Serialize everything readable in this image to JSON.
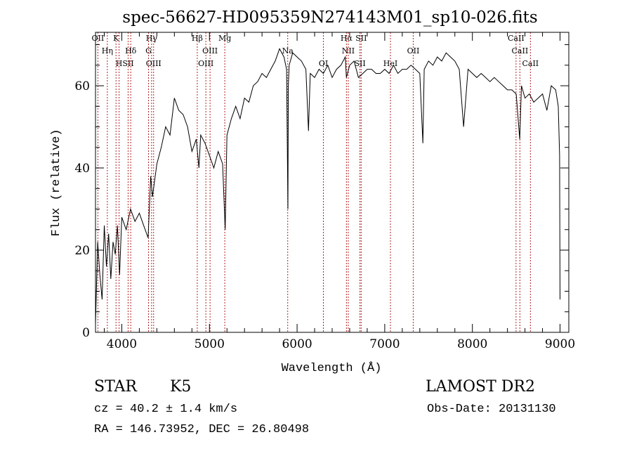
{
  "chart_data": {
    "type": "line",
    "title": "spec-56627-HD095359N274143M01_sp10-026.fits",
    "xlabel": "Wavelength (Å)",
    "ylabel": "Flux (relative)",
    "xlim": [
      3700,
      9100
    ],
    "ylim": [
      0,
      73
    ],
    "xticks": [
      4000,
      5000,
      6000,
      7000,
      8000,
      9000
    ],
    "yticks": [
      0,
      20,
      40,
      60
    ],
    "grid": false,
    "line_color": "#000000",
    "marker_color": "#b22222",
    "series": [
      {
        "x": [
          3700,
          3725,
          3750,
          3775,
          3800,
          3825,
          3850,
          3875,
          3900,
          3925,
          3950,
          3975,
          4000,
          4050,
          4100,
          4150,
          4200,
          4250,
          4300,
          4330,
          4350,
          4400,
          4450,
          4500,
          4550,
          4600,
          4650,
          4700,
          4750,
          4800,
          4850,
          4880,
          4900,
          4950,
          5000,
          5050,
          5100,
          5150,
          5180,
          5200,
          5250,
          5300,
          5350,
          5400,
          5450,
          5500,
          5550,
          5600,
          5650,
          5700,
          5750,
          5800,
          5850,
          5880,
          5895,
          5900,
          5910,
          5950,
          6000,
          6050,
          6100,
          6130,
          6150,
          6200,
          6250,
          6300,
          6350,
          6400,
          6450,
          6500,
          6550,
          6563,
          6600,
          6650,
          6700,
          6750,
          6800,
          6850,
          6900,
          6950,
          7000,
          7050,
          7100,
          7150,
          7200,
          7250,
          7300,
          7350,
          7400,
          7435,
          7450,
          7500,
          7550,
          7600,
          7650,
          7700,
          7750,
          7800,
          7850,
          7900,
          7950,
          8000,
          8050,
          8100,
          8150,
          8200,
          8250,
          8300,
          8350,
          8400,
          8450,
          8500,
          8540,
          8560,
          8600,
          8650,
          8700,
          8750,
          8800,
          8850,
          8900,
          8950,
          8980,
          8995,
          9000
        ],
        "y": [
          2,
          22,
          14,
          8,
          26,
          16,
          24,
          13,
          22,
          19,
          26,
          14,
          28,
          25,
          30,
          27,
          29,
          26,
          23,
          38,
          33,
          41,
          45,
          50,
          48,
          57,
          54,
          53,
          50,
          44,
          47,
          40,
          48,
          46,
          43,
          40,
          44,
          41,
          25,
          48,
          52,
          55,
          52,
          57,
          56,
          60,
          61,
          63,
          62,
          64,
          66,
          69,
          67,
          64,
          30,
          60,
          65,
          68,
          67,
          66,
          64,
          49,
          63,
          62,
          64,
          63,
          65,
          62,
          64,
          65,
          67,
          62,
          65,
          66,
          62,
          63,
          64,
          64,
          63,
          63,
          64,
          63,
          65,
          63,
          64,
          64,
          65,
          64,
          63,
          46,
          64,
          66,
          65,
          67,
          66,
          68,
          67,
          66,
          64,
          50,
          64,
          63,
          62,
          63,
          62,
          61,
          62,
          61,
          60,
          59,
          59,
          58,
          47,
          60,
          57,
          58,
          56,
          57,
          58,
          54,
          60,
          59,
          55,
          43,
          8
        ]
      }
    ],
    "line_markers": [
      {
        "label": "OII",
        "wavelength": 3727
      },
      {
        "label": "Hη",
        "wavelength": 3835
      },
      {
        "label": "H",
        "wavelength": 3969
      },
      {
        "label": "K",
        "wavelength": 3934
      },
      {
        "label": "Hδ",
        "wavelength": 4102
      },
      {
        "label": "SII",
        "wavelength": 4072
      },
      {
        "label": "Hγ",
        "wavelength": 4340
      },
      {
        "label": "G",
        "wavelength": 4305
      },
      {
        "label": "OIII",
        "wavelength": 4363
      },
      {
        "label": "Hβ",
        "wavelength": 4861
      },
      {
        "label": "OIII",
        "wavelength": 5007
      },
      {
        "label": "OIII",
        "wavelength": 4959
      },
      {
        "label": "Mg",
        "wavelength": 5175
      },
      {
        "label": "Na",
        "wavelength": 5893
      },
      {
        "label": "OI",
        "wavelength": 6300
      },
      {
        "label": "Hα",
        "wavelength": 6563
      },
      {
        "label": "NII",
        "wavelength": 6584
      },
      {
        "label": "SII",
        "wavelength": 6717
      },
      {
        "label": "SII",
        "wavelength": 6731
      },
      {
        "label": "OII",
        "wavelength": 7325
      },
      {
        "label": "HeI",
        "wavelength": 7065
      },
      {
        "label": "CaII",
        "wavelength": 8498
      },
      {
        "label": "CaII",
        "wavelength": 8542
      },
      {
        "label": "CaII",
        "wavelength": 8662
      }
    ]
  },
  "info": {
    "class_label": "STAR",
    "subclass": "K5",
    "survey": "LAMOST DR2",
    "cz_line": "cz = 40.2 ± 1.4 km/s",
    "obs_date": "Obs-Date: 20131130",
    "radec": "RA = 146.73952, DEC =  26.80498"
  }
}
